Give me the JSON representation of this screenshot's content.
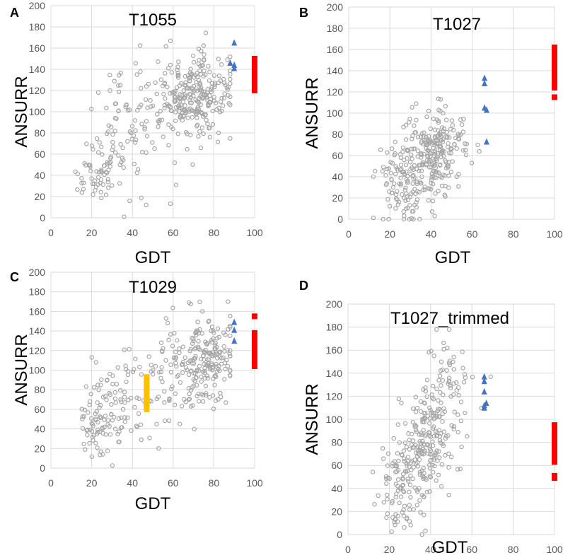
{
  "figure": {
    "description": "Four scatter panels of ANSURR score vs GDT"
  },
  "chart_data": [
    {
      "panel": "A",
      "type": "scatter",
      "title": "T1055",
      "xlabel": "GDT",
      "ylabel": "ANSURR",
      "xlim": [
        0,
        100
      ],
      "ylim": [
        0,
        200
      ],
      "xticks": [
        "0",
        "20",
        "40",
        "60",
        "80",
        "100"
      ],
      "yticks": [
        "0",
        "20",
        "40",
        "60",
        "80",
        "100",
        "120",
        "140",
        "160",
        "180",
        "200"
      ],
      "grid": true,
      "series": [
        {
          "name": "decoys",
          "marker": "open-circle",
          "color": "#a6a6a6",
          "points": "generated-cloud",
          "cluster_centers": [
            [
              22,
              35
            ],
            [
              30,
              70
            ],
            [
              40,
              90
            ],
            [
              63,
              110
            ],
            [
              74,
              115
            ],
            [
              80,
              130
            ]
          ]
        },
        {
          "name": "blue-triangles",
          "marker": "triangle",
          "color": "#4472c4",
          "x": [
            90,
            88,
            90,
            90
          ],
          "y": [
            165,
            146,
            144,
            141
          ]
        },
        {
          "name": "red-squares",
          "marker": "square",
          "color": "#ff0000",
          "x": [
            100,
            100,
            100,
            100,
            100,
            100,
            100,
            100,
            100,
            100,
            100,
            100,
            100,
            100,
            100,
            100
          ],
          "y": [
            150,
            148,
            146,
            144,
            142,
            140,
            138,
            136,
            134,
            132,
            130,
            128,
            126,
            124,
            122,
            120
          ]
        }
      ]
    },
    {
      "panel": "B",
      "type": "scatter",
      "title": "T1027",
      "xlabel": "GDT",
      "ylabel": "ANSURR",
      "xlim": [
        0,
        100
      ],
      "ylim": [
        0,
        200
      ],
      "xticks": [
        "0",
        "20",
        "40",
        "60",
        "80",
        "100"
      ],
      "yticks": [
        "0",
        "20",
        "40",
        "60",
        "80",
        "100",
        "120",
        "140",
        "160",
        "180",
        "200"
      ],
      "grid": true,
      "series": [
        {
          "name": "decoys",
          "marker": "open-circle",
          "color": "#a6a6a6",
          "points": "generated-cloud",
          "cluster_centers": [
            [
              25,
              30
            ],
            [
              35,
              50
            ],
            [
              42,
              65
            ],
            [
              48,
              75
            ]
          ]
        },
        {
          "name": "blue-triangles",
          "marker": "triangle",
          "color": "#4472c4",
          "x": [
            66,
            66,
            66,
            67,
            67
          ],
          "y": [
            133,
            128,
            105,
            103,
            73
          ]
        },
        {
          "name": "red-squares",
          "marker": "square",
          "color": "#ff0000",
          "x": [
            100,
            100,
            100,
            100,
            100,
            100,
            100,
            100,
            100,
            100,
            100,
            100,
            100,
            100,
            100,
            100,
            100,
            100
          ],
          "y": [
            162,
            160,
            158,
            156,
            154,
            152,
            150,
            148,
            146,
            144,
            142,
            140,
            138,
            136,
            132,
            128,
            124,
            115
          ]
        }
      ]
    },
    {
      "panel": "C",
      "type": "scatter",
      "title": "T1029",
      "xlabel": "GDT",
      "ylabel": "ANSURR",
      "xlim": [
        0,
        100
      ],
      "ylim": [
        0,
        200
      ],
      "xticks": [
        "0",
        "20",
        "40",
        "60",
        "80",
        "100"
      ],
      "yticks": [
        "0",
        "20",
        "40",
        "60",
        "80",
        "100",
        "120",
        "140",
        "160",
        "180",
        "200"
      ],
      "grid": true,
      "series": [
        {
          "name": "decoys",
          "marker": "open-circle",
          "color": "#a6a6a6",
          "points": "generated-cloud",
          "cluster_centers": [
            [
              22,
              50
            ],
            [
              35,
              70
            ],
            [
              55,
              80
            ],
            [
              72,
              105
            ],
            [
              80,
              120
            ]
          ]
        },
        {
          "name": "yellow-squares",
          "marker": "square",
          "color": "#ffc000",
          "x": [
            47,
            47,
            47,
            47,
            47,
            47,
            47,
            47,
            47,
            47,
            47,
            47,
            47
          ],
          "y": [
            93,
            90,
            86,
            83,
            80,
            77,
            74,
            71,
            68,
            66,
            64,
            62,
            60
          ]
        },
        {
          "name": "blue-triangles",
          "marker": "triangle",
          "color": "#4472c4",
          "x": [
            90,
            90,
            90
          ],
          "y": [
            149,
            141,
            130
          ]
        },
        {
          "name": "red-squares",
          "marker": "square",
          "color": "#ff0000",
          "x": [
            100,
            100,
            100,
            100,
            100,
            100,
            100,
            100,
            100,
            100,
            100,
            100,
            100,
            100,
            100,
            100,
            100,
            100
          ],
          "y": [
            155,
            138,
            134,
            130,
            127,
            124,
            121,
            118,
            116,
            114,
            112,
            110,
            108,
            106,
            105,
            104,
            135,
            132
          ]
        }
      ]
    },
    {
      "panel": "D",
      "type": "scatter",
      "title": "T1027_trimmed",
      "xlabel": "GDT",
      "ylabel": "ANSURR",
      "xlim": [
        0,
        100
      ],
      "ylim": [
        0,
        200
      ],
      "xticks": [
        "0",
        "20",
        "40",
        "60",
        "80",
        "100"
      ],
      "yticks": [
        "0",
        "20",
        "40",
        "60",
        "80",
        "100",
        "120",
        "140",
        "160",
        "180",
        "200"
      ],
      "grid": true,
      "series": [
        {
          "name": "decoys",
          "marker": "open-circle",
          "color": "#a6a6a6",
          "points": "generated-cloud",
          "cluster_centers": [
            [
              25,
              40
            ],
            [
              35,
              70
            ],
            [
              40,
              90
            ],
            [
              47,
              110
            ],
            [
              52,
              135
            ]
          ]
        },
        {
          "name": "blue-triangles",
          "marker": "triangle",
          "color": "#4472c4",
          "x": [
            66,
            66,
            66,
            67,
            66,
            66
          ],
          "y": [
            137,
            133,
            124,
            114,
            112,
            110
          ]
        },
        {
          "name": "red-squares",
          "marker": "square",
          "color": "#ff0000",
          "x": [
            100,
            100,
            100,
            100,
            100,
            100,
            100,
            100,
            100,
            100,
            100,
            100,
            100,
            100,
            100,
            100,
            100
          ],
          "y": [
            95,
            92,
            89,
            86,
            83,
            80,
            77,
            74,
            71,
            68,
            65,
            63,
            94,
            90,
            85,
            51,
            49
          ]
        }
      ]
    }
  ]
}
